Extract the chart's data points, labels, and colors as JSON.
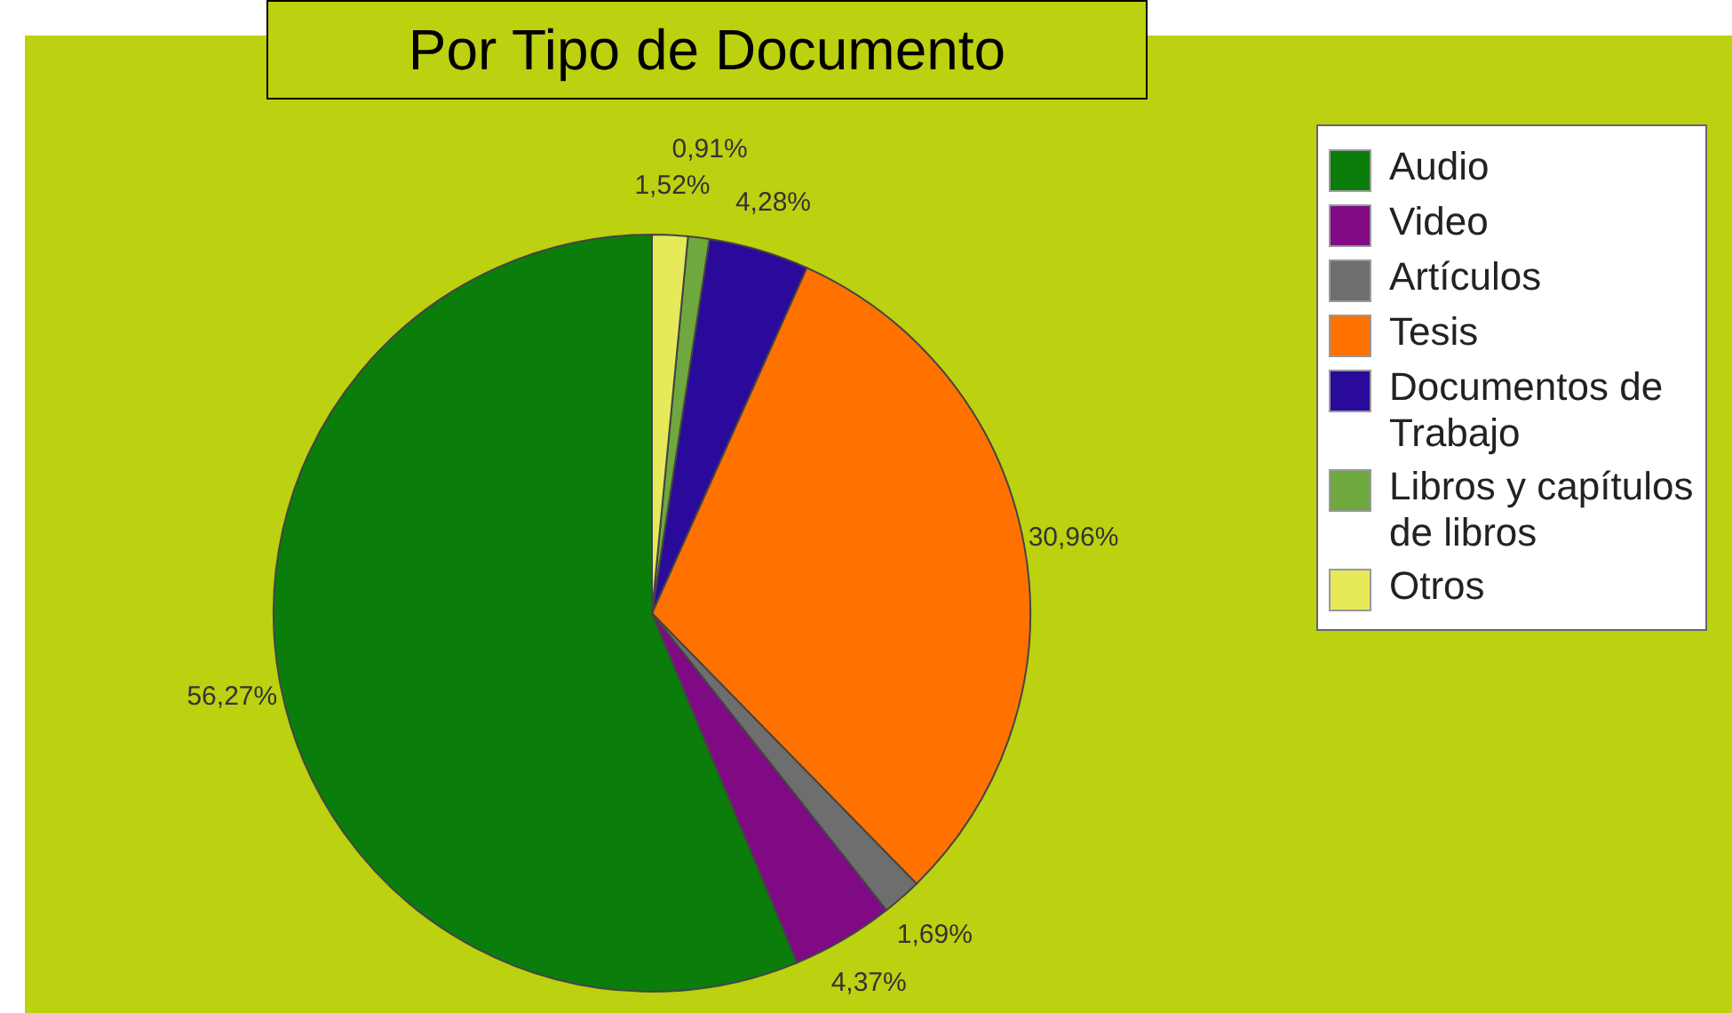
{
  "chart_data": {
    "type": "pie",
    "title": "Por Tipo de Documento",
    "categories": [
      "Audio",
      "Video",
      "Artículos",
      "Tesis",
      "Documentos de Trabajo",
      "Libros y capítulos de libros",
      "Otros"
    ],
    "values": [
      56.27,
      4.37,
      1.69,
      30.96,
      4.28,
      0.91,
      1.52
    ],
    "colors": [
      "#0a7d0a",
      "#7f0a84",
      "#6e6e6e",
      "#ff7200",
      "#2a0a9a",
      "#6fa83e",
      "#e6ea5a"
    ],
    "value_labels": [
      "56,27%",
      "4,37%",
      "1,69%",
      "30,96%",
      "4,28%",
      "0,91%",
      "1,52%"
    ],
    "legend": "right"
  }
}
